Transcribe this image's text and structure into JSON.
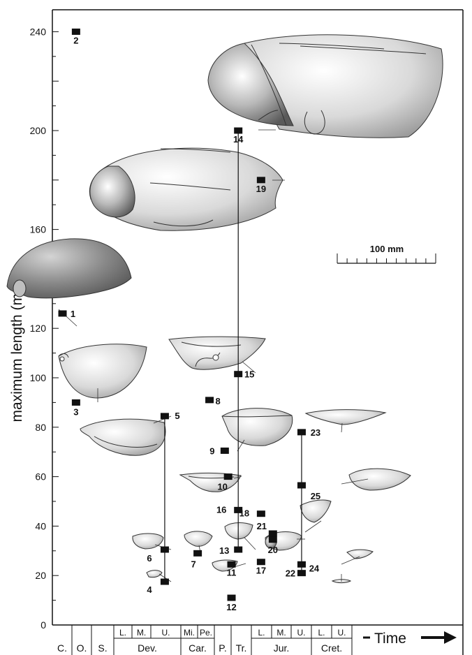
{
  "chart_data": {
    "type": "scatter",
    "ylabel": "maximum length (mm)",
    "ylim": [
      0,
      250
    ],
    "y_ticks": [
      "0",
      "20",
      "40",
      "60",
      "80",
      "100",
      "120",
      "160",
      "200",
      "240"
    ],
    "scale_bar": "100 mm",
    "time_label": "Time",
    "periods": [
      {
        "label": "C.",
        "sub": []
      },
      {
        "label": "O.",
        "sub": []
      },
      {
        "label": "S.",
        "sub": []
      },
      {
        "label": "Dev.",
        "sub": [
          "L.",
          "M.",
          "U."
        ]
      },
      {
        "label": "Car.",
        "sub": [
          "Mi.",
          "Pe."
        ]
      },
      {
        "label": "P.",
        "sub": []
      },
      {
        "label": "Tr.",
        "sub": []
      },
      {
        "label": "Jur.",
        "sub": [
          "L.",
          "M.",
          "U."
        ]
      },
      {
        "label": "Cret.",
        "sub": [
          "L.",
          "U."
        ]
      }
    ],
    "points": [
      {
        "label": "1",
        "x": 0.6,
        "y": 126
      },
      {
        "label": "2",
        "x": 1.4,
        "y": 240
      },
      {
        "label": "3",
        "x": 1.4,
        "y": 90
      },
      {
        "label": "4",
        "x": 6.65,
        "y": 17.5
      },
      {
        "label": "5",
        "x": 6.65,
        "y": 84.5
      },
      {
        "label": "6",
        "x": 6.65,
        "y": 30.5
      },
      {
        "label": "7",
        "x": 8.6,
        "y": 29
      },
      {
        "label": "8",
        "x": 9.3,
        "y": 91
      },
      {
        "label": "9",
        "x": 10.2,
        "y": 70.5
      },
      {
        "label": "10",
        "x": 10.4,
        "y": 60
      },
      {
        "label": "11",
        "x": 10.6,
        "y": 24.5
      },
      {
        "label": "12",
        "x": 10.6,
        "y": 11
      },
      {
        "label": "13",
        "x": 11.0,
        "y": 30.5
      },
      {
        "label": "14",
        "x": 11.0,
        "y": 200
      },
      {
        "label": "15",
        "x": 11.0,
        "y": 101.5
      },
      {
        "label": "16",
        "x": 11.0,
        "y": 46.5
      },
      {
        "label": "17",
        "x": 12.35,
        "y": 25.5
      },
      {
        "label": "18",
        "x": 12.35,
        "y": 45
      },
      {
        "label": "19",
        "x": 12.35,
        "y": 180
      },
      {
        "label": "20",
        "x": 13.05,
        "y": 34.5
      },
      {
        "label": "21",
        "x": 13.05,
        "y": 37
      },
      {
        "label": "22",
        "x": 14.75,
        "y": 21
      },
      {
        "label": "23",
        "x": 14.75,
        "y": 78
      },
      {
        "label": "24",
        "x": 14.75,
        "y": 24.5
      },
      {
        "label": "25",
        "x": 14.75,
        "y": 56.5
      }
    ],
    "ranges": [
      {
        "x": 6.65,
        "ymin": 17.5,
        "ymax": 84.5
      },
      {
        "x": 11.0,
        "ymin": 30.5,
        "ymax": 200
      },
      {
        "x": 14.75,
        "ymin": 21,
        "ymax": 78
      }
    ]
  }
}
